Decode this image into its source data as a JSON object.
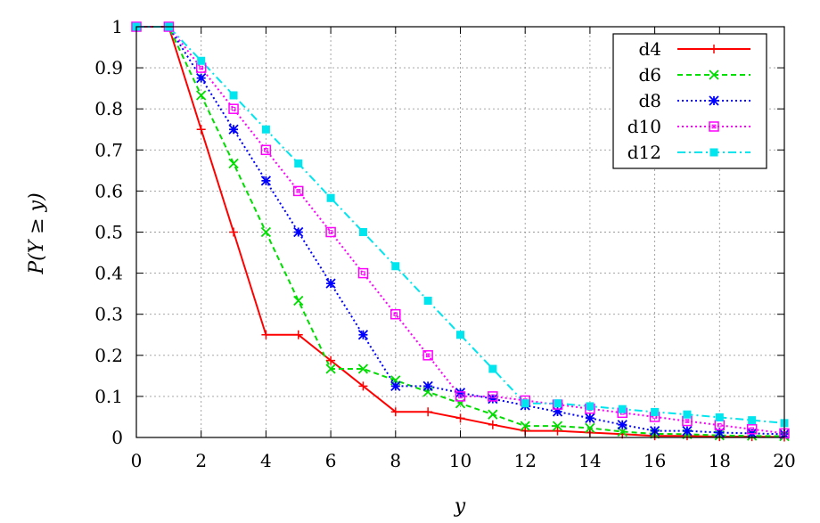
{
  "chart_data": {
    "type": "line",
    "title": "",
    "xlabel": "y",
    "ylabel": "P(Y ≥ y)",
    "xlim": [
      0,
      20
    ],
    "ylim": [
      0,
      1
    ],
    "grid": true,
    "legend_position": "top-right",
    "xticks": [
      "0",
      "2",
      "4",
      "6",
      "8",
      "10",
      "12",
      "14",
      "16",
      "18",
      "20"
    ],
    "yticks": [
      "0",
      "0.1",
      "0.2",
      "0.3",
      "0.4",
      "0.5",
      "0.6",
      "0.7",
      "0.8",
      "0.9",
      "1"
    ],
    "x": [
      0,
      1,
      2,
      3,
      4,
      5,
      6,
      7,
      8,
      9,
      10,
      11,
      12,
      13,
      14,
      15,
      16,
      17,
      18,
      19,
      20
    ],
    "series": [
      {
        "name": "d4",
        "color": "#ff0000",
        "line_style": "solid",
        "marker": "plus",
        "values": [
          1,
          1,
          0.75,
          0.5,
          0.25,
          0.25,
          0.1875,
          0.125,
          0.0625,
          0.0625,
          0.047,
          0.031,
          0.016,
          0.016,
          0.012,
          0.008,
          0.004,
          0.004,
          0.002,
          0.002,
          0.001
        ]
      },
      {
        "name": "d6",
        "color": "#00dd00",
        "line_style": "dashed",
        "marker": "x",
        "values": [
          1,
          1,
          0.833,
          0.667,
          0.5,
          0.333,
          0.167,
          0.167,
          0.139,
          0.111,
          0.083,
          0.056,
          0.028,
          0.028,
          0.023,
          0.014,
          0.009,
          0.008,
          0.005,
          0.004,
          0.003
        ]
      },
      {
        "name": "d8",
        "color": "#0000ff",
        "line_style": "dotted",
        "marker": "star",
        "values": [
          1,
          1,
          0.875,
          0.75,
          0.625,
          0.5,
          0.375,
          0.25,
          0.125,
          0.125,
          0.109,
          0.094,
          0.078,
          0.063,
          0.047,
          0.031,
          0.016,
          0.016,
          0.012,
          0.01,
          0.008
        ]
      },
      {
        "name": "d10",
        "color": "#ff00ff",
        "line_style": "dotted",
        "marker": "open-square",
        "values": [
          1,
          1,
          0.9,
          0.8,
          0.7,
          0.6,
          0.5,
          0.4,
          0.3,
          0.2,
          0.1,
          0.1,
          0.09,
          0.08,
          0.07,
          0.06,
          0.05,
          0.04,
          0.03,
          0.02,
          0.01
        ]
      },
      {
        "name": "d12",
        "color": "#00e5ee",
        "line_style": "dashdot",
        "marker": "filled-square",
        "values": [
          1,
          1,
          0.917,
          0.833,
          0.75,
          0.667,
          0.583,
          0.5,
          0.417,
          0.333,
          0.25,
          0.167,
          0.083,
          0.083,
          0.076,
          0.069,
          0.062,
          0.056,
          0.049,
          0.042,
          0.035
        ]
      }
    ]
  }
}
